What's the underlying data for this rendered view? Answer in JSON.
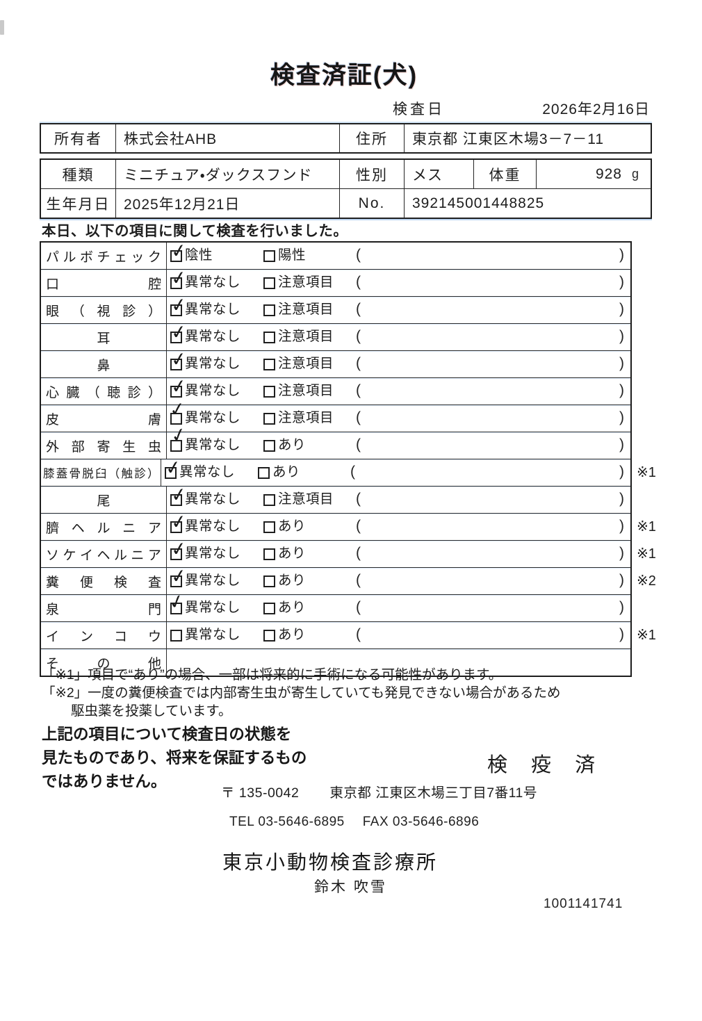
{
  "doc": {
    "title": "検査済証(犬)",
    "inspection": {
      "label": "検査日",
      "date": "2026年2月16日"
    },
    "owner": {
      "label": "所有者",
      "name": "株式会社AHB",
      "address_label": "住所",
      "address": "東京都 江東区木場3－7－11"
    },
    "animal": {
      "breed_label": "種類",
      "breed": "ミニチュア・ダックスフンド",
      "sex_label": "性別",
      "sex": "メス",
      "weight_label": "体重",
      "weight": "928",
      "weight_unit": "g",
      "birth_label": "生年月日",
      "birth_date": "2025年12月21日",
      "no_label": "No.",
      "no": "392145001448825"
    },
    "intro": "本日、以下の項目に関して検査を行いました。",
    "checklist": {
      "check_glyph": "✓",
      "paren_open": "(",
      "paren_close": ")",
      "rows": [
        {
          "item": "パルボチェック",
          "opt1": "陰性",
          "checked1": true,
          "opt2": "陽性",
          "checked2": false,
          "note": ""
        },
        {
          "item": "口腔",
          "opt1": "異常なし",
          "checked1": true,
          "opt2": "注意項目",
          "checked2": false,
          "note": ""
        },
        {
          "item": "眼（視診）",
          "opt1": "異常なし",
          "checked1": true,
          "opt2": "注意項目",
          "checked2": false,
          "note": ""
        },
        {
          "item": "耳",
          "opt1": "異常なし",
          "checked1": true,
          "opt2": "注意項目",
          "checked2": false,
          "note": ""
        },
        {
          "item": "鼻",
          "opt1": "異常なし",
          "checked1": true,
          "opt2": "注意項目",
          "checked2": false,
          "note": ""
        },
        {
          "item": "心臓（聴診）",
          "opt1": "異常なし",
          "checked1": true,
          "opt2": "注意項目",
          "checked2": false,
          "note": ""
        },
        {
          "item": "皮膚",
          "opt1": "異常なし",
          "checked1": true,
          "opt2": "注意項目",
          "checked2": false,
          "note": ""
        },
        {
          "item": "外部寄生虫",
          "opt1": "異常なし",
          "checked1": true,
          "opt2": "あり",
          "checked2": false,
          "note": ""
        },
        {
          "item": "膝蓋骨脱臼（触診）",
          "opt1": "異常なし",
          "checked1": true,
          "opt2": "あり",
          "checked2": false,
          "note": "※1"
        },
        {
          "item": "尾",
          "opt1": "異常なし",
          "checked1": true,
          "opt2": "注意項目",
          "checked2": false,
          "note": ""
        },
        {
          "item": "臍ヘルニア",
          "opt1": "異常なし",
          "checked1": true,
          "opt2": "あり",
          "checked2": false,
          "note": "※1"
        },
        {
          "item": "ソケイヘルニア",
          "opt1": "異常なし",
          "checked1": true,
          "opt2": "あり",
          "checked2": false,
          "note": "※1"
        },
        {
          "item": "糞便検査",
          "opt1": "異常なし",
          "checked1": true,
          "opt2": "あり",
          "checked2": false,
          "note": "※2"
        },
        {
          "item": "泉門",
          "opt1": "異常なし",
          "checked1": true,
          "opt2": "あり",
          "checked2": false,
          "note": ""
        },
        {
          "item": "インコウ",
          "opt1": "異常なし",
          "checked1": false,
          "opt2": "あり",
          "checked2": false,
          "note": "※1"
        },
        {
          "item": "その他",
          "opt1": "",
          "checked1": false,
          "opt2": "",
          "checked2": false,
          "note": ""
        }
      ]
    },
    "notes": {
      "note1": "「※1」項目で“あり”の場合、一部は将来的に手術になる可能性があります。",
      "note2_line1": "「※2」一度の糞便検査では内部寄生虫が寄生していても発見できない場合があるため",
      "note2_line2": "駆虫薬を投薬しています。"
    },
    "disclaimer": [
      "上記の項目について検査日の状態を",
      "見たものであり、将来を保証するもの",
      "ではありません。"
    ],
    "stamp": "検 疫 済",
    "clinic": {
      "postal": "〒 135-0042",
      "address": "東京都 江東区木場三丁目7番11号",
      "tel": "TEL 03-5646-6895",
      "fax": "FAX 03-5646-6896",
      "name": "東京小動物検査診療所",
      "veterinarian": "鈴木 吹雪",
      "serial": "1001141741"
    }
  }
}
